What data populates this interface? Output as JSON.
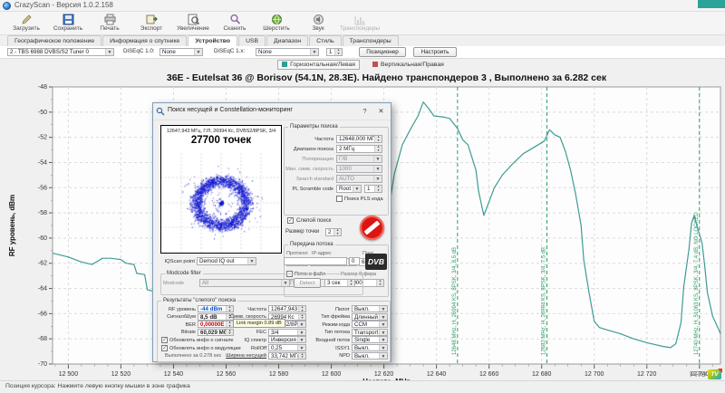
{
  "window": {
    "title": "CrazyScan - Версия 1.0.2.158"
  },
  "toolbar": {
    "buttons": [
      {
        "label": "Загрузить",
        "icon": "pencil"
      },
      {
        "label": "Сохранить",
        "icon": "floppy"
      },
      {
        "label": "Печать",
        "icon": "printer"
      },
      {
        "label": "Экспорт",
        "icon": "export"
      },
      {
        "label": "Увеличение",
        "icon": "zoom"
      },
      {
        "label": "Сканить",
        "icon": "scan"
      },
      {
        "label": "Шерстить",
        "icon": "globe"
      },
      {
        "label": "Звук",
        "icon": "sound"
      },
      {
        "label": "Транспондеры",
        "icon": "bars",
        "disabled": true
      }
    ]
  },
  "tabs": {
    "items": [
      "Географическое положение",
      "Информация о спутнике",
      "Устройство",
      "USB",
      "Диапазон",
      "Стиль",
      "Транспондеры"
    ],
    "active": "Устройство"
  },
  "device_row": {
    "tuner": "2 - TBS 6988 DVBS/S2 Tuner 0",
    "diseqc10_label": "DiSEqC 1.0:",
    "diseqc10": "None",
    "diseqc1x_label": "DiSEqC 1.x:",
    "diseqc1x": "None",
    "position_value": "1",
    "positioner_btn": "Позиционер",
    "configure_btn": "Настроить"
  },
  "legend": {
    "items": [
      {
        "label": "Горизонтальная/Левая",
        "color": "#2e9e96",
        "selected": true
      },
      {
        "label": "Вертикальная/Правая",
        "color": "#c0504d",
        "selected": false
      }
    ]
  },
  "chart_data": {
    "type": "line",
    "title": "36E - Eutelsat 36 @ Borisov (54.1N, 28.3E). Найдено транспондеров 3 , Выполнено за 6.282 сек",
    "xlabel": "Частота, MHz",
    "ylabel": "RF уровень, dBm",
    "xlim": [
      12494,
      12748
    ],
    "ylim": [
      -70,
      -48
    ],
    "grid": true,
    "x_ticks": [
      {
        "f": 12500,
        "label": "12 500"
      },
      {
        "f": 12520,
        "label": "12 520"
      },
      {
        "f": 12540,
        "label": "12 540"
      },
      {
        "f": 12560,
        "label": "12 560"
      },
      {
        "f": 12580,
        "label": "12 580"
      },
      {
        "f": 12600,
        "label": "12 600"
      },
      {
        "f": 12620,
        "label": "12 620"
      },
      {
        "f": 12640,
        "label": "12 640"
      },
      {
        "f": 12660,
        "label": "12 660"
      },
      {
        "f": 12680,
        "label": "12 680"
      },
      {
        "f": 12700,
        "label": "12 700"
      },
      {
        "f": 12720,
        "label": "12 720"
      },
      {
        "f": 12740,
        "label": "12 740"
      }
    ],
    "y_ticks": [
      {
        "v": -48,
        "label": "-48"
      },
      {
        "v": -50,
        "label": "-50"
      },
      {
        "v": -52,
        "label": "-52"
      },
      {
        "v": -54,
        "label": "-54"
      },
      {
        "v": -56,
        "label": "-56"
      },
      {
        "v": -58,
        "label": "-58"
      },
      {
        "v": -60,
        "label": "-60"
      },
      {
        "v": -62,
        "label": "-62"
      },
      {
        "v": -64,
        "label": "-64"
      },
      {
        "v": -66,
        "label": "-66"
      },
      {
        "v": -68,
        "label": "-68"
      },
      {
        "v": -70,
        "label": "-70"
      }
    ],
    "series": [
      {
        "name": "Горизонтальная/Левая",
        "color": "#3f9b94",
        "points": [
          [
            12494,
            -61.2
          ],
          [
            12500,
            -61.5
          ],
          [
            12505,
            -61.9
          ],
          [
            12509,
            -62.1
          ],
          [
            12513,
            -61.6
          ],
          [
            12516,
            -61.6
          ],
          [
            12520,
            -61.7
          ],
          [
            12522,
            -62.0
          ],
          [
            12525,
            -62.1
          ],
          [
            12526,
            -62.8
          ],
          [
            12529,
            -62.9
          ],
          [
            12530,
            -64.1
          ],
          [
            12532,
            -64.2
          ],
          [
            12534,
            -65.3
          ],
          [
            12536,
            -65.8
          ],
          [
            12540,
            -66.3
          ],
          [
            12545,
            -66.6
          ],
          [
            12553,
            -66.7
          ],
          [
            12567,
            -66.9
          ],
          [
            12588,
            -66.7
          ],
          [
            12605,
            -65.1
          ],
          [
            12614,
            -62.8
          ],
          [
            12618,
            -59.8
          ],
          [
            12622,
            -57.5
          ],
          [
            12624,
            -54.9
          ],
          [
            12627,
            -52.6
          ],
          [
            12630,
            -51.4
          ],
          [
            12633,
            -50.3
          ],
          [
            12635,
            -49.2
          ],
          [
            12637,
            -49.7
          ],
          [
            12639,
            -50.3
          ],
          [
            12643,
            -50.4
          ],
          [
            12645,
            -50.5
          ],
          [
            12648,
            -51.3
          ],
          [
            12650,
            -52.2
          ],
          [
            12652,
            -52.6
          ],
          [
            12655,
            -54.6
          ],
          [
            12656,
            -56.3
          ],
          [
            12658,
            -58.2
          ],
          [
            12660,
            -57.1
          ],
          [
            12662,
            -56.0
          ],
          [
            12665,
            -55.0
          ],
          [
            12669,
            -54.1
          ],
          [
            12673,
            -53.3
          ],
          [
            12677,
            -52.8
          ],
          [
            12681,
            -52.3
          ],
          [
            12683,
            -51.4
          ],
          [
            12685,
            -51.8
          ],
          [
            12687,
            -52.0
          ],
          [
            12689,
            -53.1
          ],
          [
            12691,
            -54.6
          ],
          [
            12693,
            -56.6
          ],
          [
            12695,
            -59.0
          ],
          [
            12696,
            -61.7
          ],
          [
            12698,
            -64.3
          ],
          [
            12700,
            -66.6
          ],
          [
            12702,
            -67.1
          ],
          [
            12705,
            -67.3
          ],
          [
            12710,
            -67.6
          ],
          [
            12715,
            -68.0
          ],
          [
            12720,
            -68.3
          ],
          [
            12726,
            -68.6
          ],
          [
            12729,
            -68.7
          ],
          [
            12731,
            -68.4
          ],
          [
            12733,
            -66.7
          ],
          [
            12734,
            -63.9
          ],
          [
            12736,
            -60.9
          ],
          [
            12737,
            -58.8
          ],
          [
            12738,
            -58.2
          ],
          [
            12739,
            -59.0
          ],
          [
            12741,
            -60.4
          ],
          [
            12742,
            -62.2
          ],
          [
            12743,
            -64.3
          ],
          [
            12745,
            -66.2
          ],
          [
            12747,
            -67.1
          ],
          [
            12748,
            -67.6
          ]
        ]
      }
    ],
    "markers": [
      {
        "freq": 12648,
        "color": "#2f9e68",
        "label": "12648 MHz, H, 26994 KS, 8PSK, 3/4, 8.5 dB"
      },
      {
        "freq": 12682,
        "color": "#2f9e68",
        "label": "12682 MHz, H, 26994 KS, 8PSK, 3/4, 7.5 dB"
      },
      {
        "freq": 12740,
        "color": "#2f9e68",
        "label": "12740 MHz, H, 51063 KS, 8PSK, 3/4, 7.4 dB, NO LOCKED"
      }
    ]
  },
  "dialog": {
    "title": "Поиск несущей и Constellation-мониторинг",
    "help_btn": "?",
    "close_btn": "✕",
    "constellation": {
      "header": "12647,943 МГц, Г/Л, 26994 Кс, DVBS2/8PSK, 3/4",
      "points_label": "27700 точек",
      "dot_color": "#1418cf"
    },
    "params": {
      "caption": "Параметры поиска",
      "fields": [
        {
          "label": "Частота",
          "value": "12648,000 МГц",
          "type": "spin"
        },
        {
          "label": "Диапазон поиска",
          "value": "2 МГц",
          "type": "spin"
        },
        {
          "label": "Поляризация",
          "value": "Г/В",
          "type": "select",
          "disabled": true
        },
        {
          "label": "Мин. симв. скорость",
          "value": "1000",
          "type": "select",
          "disabled": true
        },
        {
          "label": "Search standard",
          "value": "AUTO",
          "type": "select",
          "disabled": true
        },
        {
          "label": "PL Scramble code",
          "value": "Root",
          "value2": "1",
          "type": "select-spin"
        }
      ],
      "pls_checkbox": "Поиск PLS кода"
    },
    "blind_checkbox": "Слепой поиск",
    "dot_size_label": "Размер точки",
    "dot_size": "2",
    "stream": {
      "caption": "Передача потока",
      "protocol_label": "Протокол",
      "protocol": "TCP",
      "ip_label": "IP-адрес",
      "ip": "127.0.0.1",
      "port_label": "Порт",
      "port": "6878",
      "file_checkbox": "Поток в файл",
      "reader": "TSReader",
      "buffer_label": "Размер буфера",
      "buffer": "100000"
    },
    "iqscan_label": "IQScan point",
    "iqscan": "Demod IQ out",
    "counter": "0",
    "dvb_logo": "DVB",
    "modcode": {
      "caption": "Modcode filter",
      "label": "Modcode",
      "value": "All",
      "detect_btn": "Detect",
      "interval": "3 сек"
    },
    "results": {
      "caption": "Результаты \"слепого\" поиска",
      "rows": [
        [
          {
            "label": "RF уровень",
            "value": "-44 dBm",
            "type": "spin",
            "color": "#0050c8",
            "bold": true
          },
          {
            "label": "Частота",
            "value": "12647,943 МГ",
            "type": "spin"
          },
          {
            "label": "Пилот",
            "value": "Выкл.",
            "type": "select"
          }
        ],
        [
          {
            "label": "Сигнал/Шум",
            "value": "8,5 dB",
            "type": "spin",
            "bold": true
          },
          {
            "label": "Симв. скорость",
            "value": "26994 Кс",
            "type": "spin"
          },
          {
            "label": "Тип фрейма",
            "value": "Длинный",
            "type": "select"
          }
        ],
        [
          {
            "label": "BER",
            "value": "0,00000E",
            "type": "spin",
            "color": "#c00000",
            "bold": true
          },
          {
            "label": "",
            "value": "DVBS2/8PSK",
            "type": "select"
          },
          {
            "label": "Режим кода",
            "value": "CCM",
            "type": "select"
          }
        ],
        [
          {
            "label": "Bitrate",
            "value": "60,029 Мби",
            "type": "spin",
            "bold": true
          },
          {
            "label": "FEC",
            "value": "3/4",
            "type": "select"
          },
          {
            "label": "Тип потока",
            "value": "Transport",
            "type": "select"
          }
        ],
        [
          {
            "label": "Обновлять инфо о сигнале",
            "type": "checkbox",
            "checked": true
          },
          {
            "label": "IQ спектр",
            "value": "Инверсия",
            "type": "select"
          },
          {
            "label": "Входной поток",
            "value": "Single",
            "type": "select"
          }
        ],
        [
          {
            "label": "Обновлять инфо о модуляции",
            "type": "checkbox",
            "checked": true
          },
          {
            "label": "RollOff",
            "value": "0,25",
            "type": "select"
          },
          {
            "label": "ISSY1",
            "value": "Выкл.",
            "type": "select"
          }
        ],
        [
          {
            "label": "Выполнено за 0.278 sec",
            "type": "text"
          },
          {
            "label": "Ширина несущей",
            "value": "33,742 МГц",
            "type": "spin",
            "link": true
          },
          {
            "label": "NPD",
            "value": "Выкл.",
            "type": "select"
          }
        ]
      ]
    },
    "tooltip": "Link margin 0.89 dB"
  },
  "status_bar": {
    "text": "Позиция курсора: Нажмите левую кнопку мышки в зоне графика"
  },
  "watermark": {
    "pro": "PRO",
    "tv": "TV"
  }
}
